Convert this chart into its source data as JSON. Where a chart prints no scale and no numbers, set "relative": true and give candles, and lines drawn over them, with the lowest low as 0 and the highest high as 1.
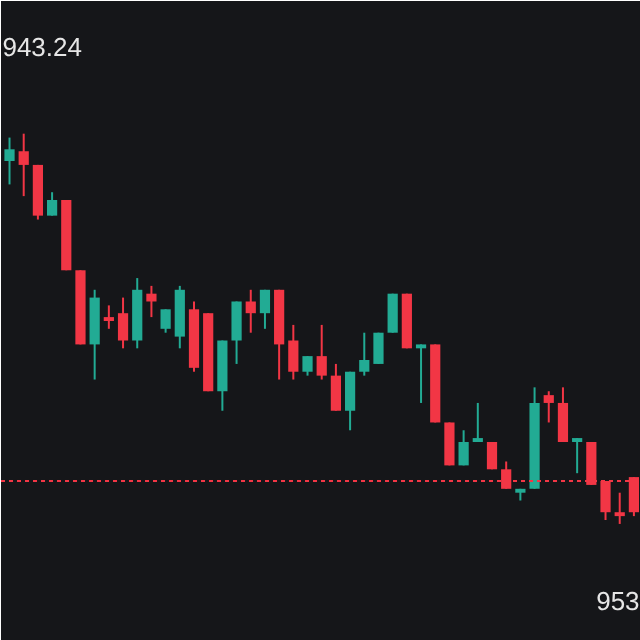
{
  "chart_data": {
    "type": "candlestick",
    "relative": true,
    "categories": [
      null,
      null,
      null,
      null,
      null,
      null,
      null,
      null,
      null,
      null,
      null,
      null,
      null,
      null,
      null,
      null,
      null,
      null,
      null,
      null,
      null,
      null,
      null,
      null,
      null,
      null,
      null,
      null,
      null,
      null,
      null,
      null,
      null,
      null,
      null,
      null,
      null,
      null,
      null,
      null,
      null,
      null,
      null,
      null,
      null
    ],
    "ohlc": [
      [
        0.93,
        0.99,
        0.87,
        0.96
      ],
      [
        0.955,
        1.0,
        0.84,
        0.92
      ],
      [
        0.92,
        0.92,
        0.78,
        0.79
      ],
      [
        0.79,
        0.85,
        0.79,
        0.83
      ],
      [
        0.83,
        0.83,
        0.65,
        0.65
      ],
      [
        0.65,
        0.65,
        0.46,
        0.46
      ],
      [
        0.46,
        0.6,
        0.37,
        0.58
      ],
      [
        0.53,
        0.56,
        0.5,
        0.52
      ],
      [
        0.54,
        0.58,
        0.45,
        0.47
      ],
      [
        0.47,
        0.63,
        0.45,
        0.6
      ],
      [
        0.59,
        0.61,
        0.53,
        0.57
      ],
      [
        0.5,
        0.55,
        0.49,
        0.55
      ],
      [
        0.48,
        0.61,
        0.45,
        0.6
      ],
      [
        0.55,
        0.57,
        0.39,
        0.4
      ],
      [
        0.54,
        0.54,
        0.34,
        0.34
      ],
      [
        0.34,
        0.47,
        0.29,
        0.47
      ],
      [
        0.47,
        0.57,
        0.41,
        0.57
      ],
      [
        0.57,
        0.6,
        0.49,
        0.54
      ],
      [
        0.54,
        0.6,
        0.5,
        0.6
      ],
      [
        0.6,
        0.6,
        0.37,
        0.46
      ],
      [
        0.47,
        0.51,
        0.37,
        0.39
      ],
      [
        0.39,
        0.43,
        0.38,
        0.43
      ],
      [
        0.43,
        0.51,
        0.37,
        0.38
      ],
      [
        0.38,
        0.41,
        0.29,
        0.29
      ],
      [
        0.29,
        0.39,
        0.24,
        0.39
      ],
      [
        0.39,
        0.49,
        0.38,
        0.42
      ],
      [
        0.41,
        0.49,
        0.41,
        0.49
      ],
      [
        0.49,
        0.59,
        0.49,
        0.59
      ],
      [
        0.59,
        0.59,
        0.45,
        0.45
      ],
      [
        0.45,
        0.46,
        0.31,
        0.46
      ],
      [
        0.46,
        0.46,
        0.26,
        0.26
      ],
      [
        0.26,
        0.26,
        0.15,
        0.15
      ],
      [
        0.15,
        0.24,
        0.15,
        0.21
      ],
      [
        0.21,
        0.31,
        0.21,
        0.22
      ],
      [
        0.21,
        0.21,
        0.14,
        0.14
      ],
      [
        0.14,
        0.16,
        0.09,
        0.09
      ],
      [
        0.08,
        0.09,
        0.06,
        0.09
      ],
      [
        0.09,
        0.35,
        0.09,
        0.31
      ],
      [
        0.33,
        0.34,
        0.26,
        0.31
      ],
      [
        0.31,
        0.35,
        0.21,
        0.21
      ],
      [
        0.21,
        0.22,
        0.13,
        0.22
      ],
      [
        0.21,
        0.21,
        0.1,
        0.1
      ],
      [
        0.11,
        0.11,
        0.01,
        0.03
      ],
      [
        0.03,
        0.08,
        0.0,
        0.02
      ],
      [
        0.12,
        0.12,
        0.02,
        0.03
      ]
    ],
    "colors": [
      "#22ab94",
      "#f23645",
      "#f23645",
      "#22ab94",
      "#f23645",
      "#f23645",
      "#22ab94",
      "#f23645",
      "#f23645",
      "#22ab94",
      "#f23645",
      "#22ab94",
      "#22ab94",
      "#f23645",
      "#f23645",
      "#22ab94",
      "#22ab94",
      "#f23645",
      "#22ab94",
      "#f23645",
      "#f23645",
      "#22ab94",
      "#f23645",
      "#f23645",
      "#22ab94",
      "#22ab94",
      "#22ab94",
      "#22ab94",
      "#f23645",
      "#22ab94",
      "#f23645",
      "#f23645",
      "#22ab94",
      "#22ab94",
      "#f23645",
      "#f23645",
      "#22ab94",
      "#22ab94",
      "#f23645",
      "#f23645",
      "#22ab94",
      "#f23645",
      "#f23645",
      "#f23645",
      "#f23645"
    ],
    "ref_lines": [
      {
        "axis": "y",
        "value": 0.11,
        "color": "#f23645",
        "line_style": "dotted"
      }
    ],
    "annotations": [
      "943.24",
      "953"
    ]
  }
}
